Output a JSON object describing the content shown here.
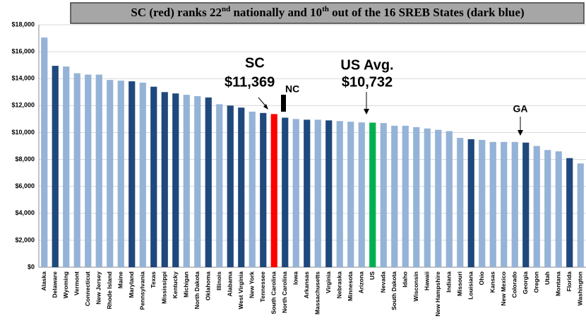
{
  "chart_data": {
    "type": "bar",
    "title": [
      "SC (red) ranks 22",
      "nd",
      " nationally and 10",
      "th",
      " out of the 16 SREB States (dark blue)"
    ],
    "categories": [
      "Alaska",
      "Delaware",
      "Wyoming",
      "Vermont",
      "Connecticut",
      "New Jersey",
      "Rhode Island",
      "Maine",
      "Maryland",
      "Pennsylvania",
      "Texas",
      "Mississippi",
      "Kentucky",
      "Michigan",
      "North Dakota",
      "Oklahoma",
      "Illinois",
      "Alabama",
      "West Virginia",
      "New York",
      "Tennessee",
      "South Carolina",
      "North Carolina",
      "Iowa",
      "Arkansas",
      "Massachusetts",
      "Virginia",
      "Nebraska",
      "Minnesota",
      "Arizona",
      "US",
      "Nevada",
      "South Dakota",
      "Idaho",
      "Wisconsin",
      "Hawaii",
      "New Hampshire",
      "Indiana",
      "Missouri",
      "Louisiana",
      "Ohio",
      "Kansas",
      "New Mexico",
      "Colorado",
      "Georgia",
      "Oregon",
      "Utah",
      "Montana",
      "Florida",
      "Washington"
    ],
    "values": [
      17050,
      14950,
      14900,
      14400,
      14300,
      14300,
      13900,
      13850,
      13800,
      13700,
      13400,
      13000,
      12900,
      12800,
      12700,
      12600,
      12100,
      12000,
      11850,
      11550,
      11450,
      11369,
      11100,
      11000,
      10950,
      10950,
      10900,
      10850,
      10800,
      10750,
      10732,
      10700,
      10500,
      10500,
      10400,
      10300,
      10200,
      10100,
      9600,
      9500,
      9450,
      9300,
      9300,
      9300,
      9250,
      9000,
      8700,
      8600,
      8100,
      7700
    ],
    "colors": [
      "#95b3d7",
      "#1f497d",
      "#95b3d7",
      "#95b3d7",
      "#95b3d7",
      "#95b3d7",
      "#95b3d7",
      "#95b3d7",
      "#1f497d",
      "#95b3d7",
      "#1f497d",
      "#1f497d",
      "#1f497d",
      "#95b3d7",
      "#95b3d7",
      "#1f497d",
      "#95b3d7",
      "#1f497d",
      "#1f497d",
      "#95b3d7",
      "#1f497d",
      "#ff0000",
      "#1f497d",
      "#95b3d7",
      "#1f497d",
      "#95b3d7",
      "#1f497d",
      "#95b3d7",
      "#95b3d7",
      "#95b3d7",
      "#00b050",
      "#95b3d7",
      "#95b3d7",
      "#95b3d7",
      "#95b3d7",
      "#95b3d7",
      "#95b3d7",
      "#95b3d7",
      "#95b3d7",
      "#1f497d",
      "#95b3d7",
      "#95b3d7",
      "#95b3d7",
      "#95b3d7",
      "#1f497d",
      "#95b3d7",
      "#95b3d7",
      "#95b3d7",
      "#1f497d",
      "#95b3d7"
    ],
    "ylim": [
      0,
      18000
    ],
    "yticks": [
      {
        "value": 0,
        "label": "$0"
      },
      {
        "value": 2000,
        "label": "$2,000"
      },
      {
        "value": 4000,
        "label": "$4,000"
      },
      {
        "value": 6000,
        "label": "$6,000"
      },
      {
        "value": 8000,
        "label": "$8,000"
      },
      {
        "value": 10000,
        "label": "$10,000"
      },
      {
        "value": 12000,
        "label": "$12,000"
      },
      {
        "value": 14000,
        "label": "$14,000"
      },
      {
        "value": 16000,
        "label": "$16,000"
      },
      {
        "value": 18000,
        "label": "$18,000"
      }
    ],
    "grid": true,
    "annotations": [
      "SC",
      "$11,369",
      "NC",
      "US Avg.",
      "$10,732",
      "GA"
    ]
  }
}
